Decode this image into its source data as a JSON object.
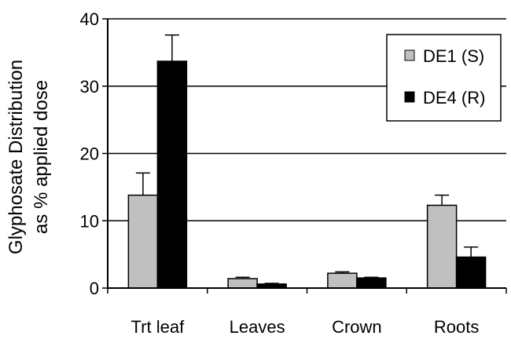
{
  "chart_data": {
    "type": "bar",
    "ylabel": [
      "Glyphosate Distribution",
      "as % applied dose"
    ],
    "categories": [
      "Trt leaf",
      "Leaves",
      "Crown",
      "Roots"
    ],
    "ylim": [
      0,
      40
    ],
    "yticks": [
      0,
      10,
      20,
      30,
      40
    ],
    "grid": true,
    "legend_position": "top-right",
    "series": [
      {
        "name": "DE1 (S)",
        "color": "#c0c0c0",
        "values": [
          13.8,
          1.4,
          2.2,
          12.3
        ],
        "errors": [
          3.3,
          0.2,
          0.2,
          1.5
        ]
      },
      {
        "name": "DE4 (R)",
        "color": "#000000",
        "values": [
          33.7,
          0.6,
          1.5,
          4.6
        ],
        "errors": [
          3.9,
          0.1,
          0.1,
          1.5
        ]
      }
    ]
  }
}
